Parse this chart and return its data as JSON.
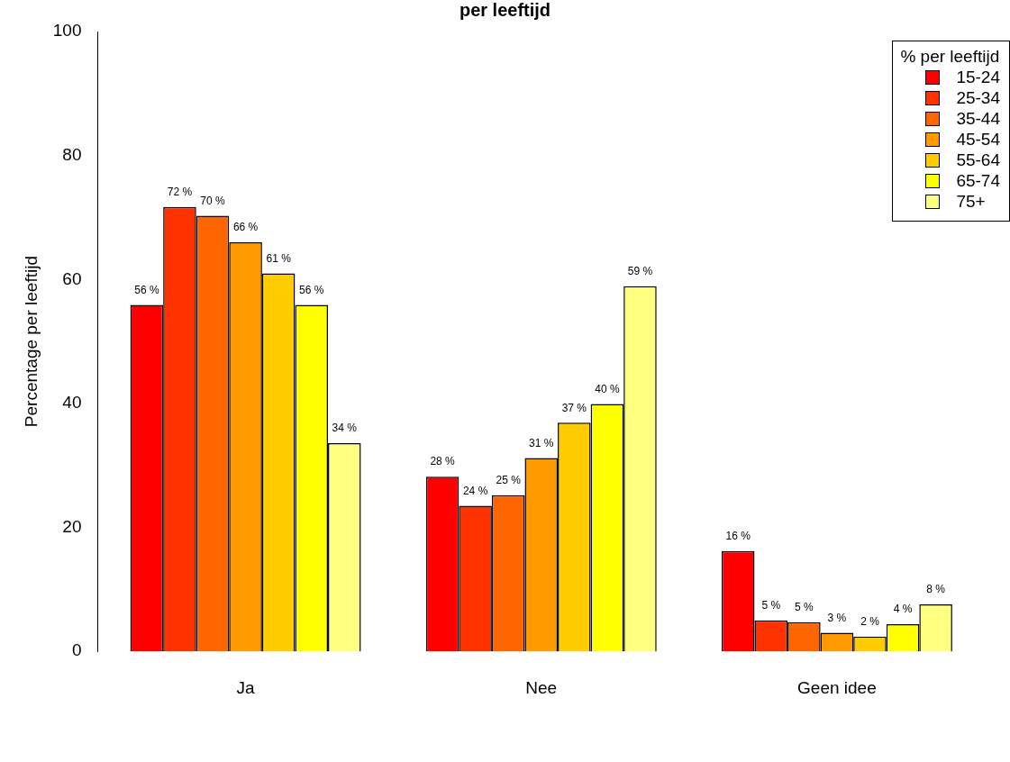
{
  "chart_data": {
    "type": "bar",
    "title": "per leeftijd",
    "ylabel": "Percentage per leeftijd",
    "legend_title": "% per leeftijd",
    "categories": [
      "Ja",
      "Nee",
      "Geen idee"
    ],
    "series": [
      {
        "name": "15-24",
        "color": "#ff0000",
        "values": [
          55.9,
          28.2,
          16.2
        ],
        "value_labels": [
          "56 %",
          "28 %",
          "16 %"
        ]
      },
      {
        "name": "25-34",
        "color": "#ff3300",
        "values": [
          71.7,
          23.5,
          5.0
        ],
        "value_labels": [
          "72 %",
          "24 %",
          "5 %"
        ]
      },
      {
        "name": "35-44",
        "color": "#ff6600",
        "values": [
          70.3,
          25.2,
          4.7
        ],
        "value_labels": [
          "70 %",
          "25 %",
          "5 %"
        ]
      },
      {
        "name": "45-54",
        "color": "#ff9900",
        "values": [
          66.0,
          31.2,
          3.0
        ],
        "value_labels": [
          "66 %",
          "31 %",
          "3 %"
        ]
      },
      {
        "name": "55-64",
        "color": "#ffcc00",
        "values": [
          61.0,
          36.9,
          2.4
        ],
        "value_labels": [
          "61 %",
          "37 %",
          "2 %"
        ]
      },
      {
        "name": "65-74",
        "color": "#ffff00",
        "values": [
          55.9,
          39.9,
          4.4
        ],
        "value_labels": [
          "56 %",
          "40 %",
          "4 %"
        ]
      },
      {
        "name": "75+",
        "color": "#ffff80",
        "values": [
          33.6,
          58.9,
          7.6
        ],
        "value_labels": [
          "34 %",
          "59 %",
          "8 %"
        ]
      }
    ],
    "ylim": [
      0,
      100
    ],
    "yticks": [
      0,
      20,
      40,
      60,
      80,
      100
    ],
    "grid": false,
    "legend": "top right"
  }
}
